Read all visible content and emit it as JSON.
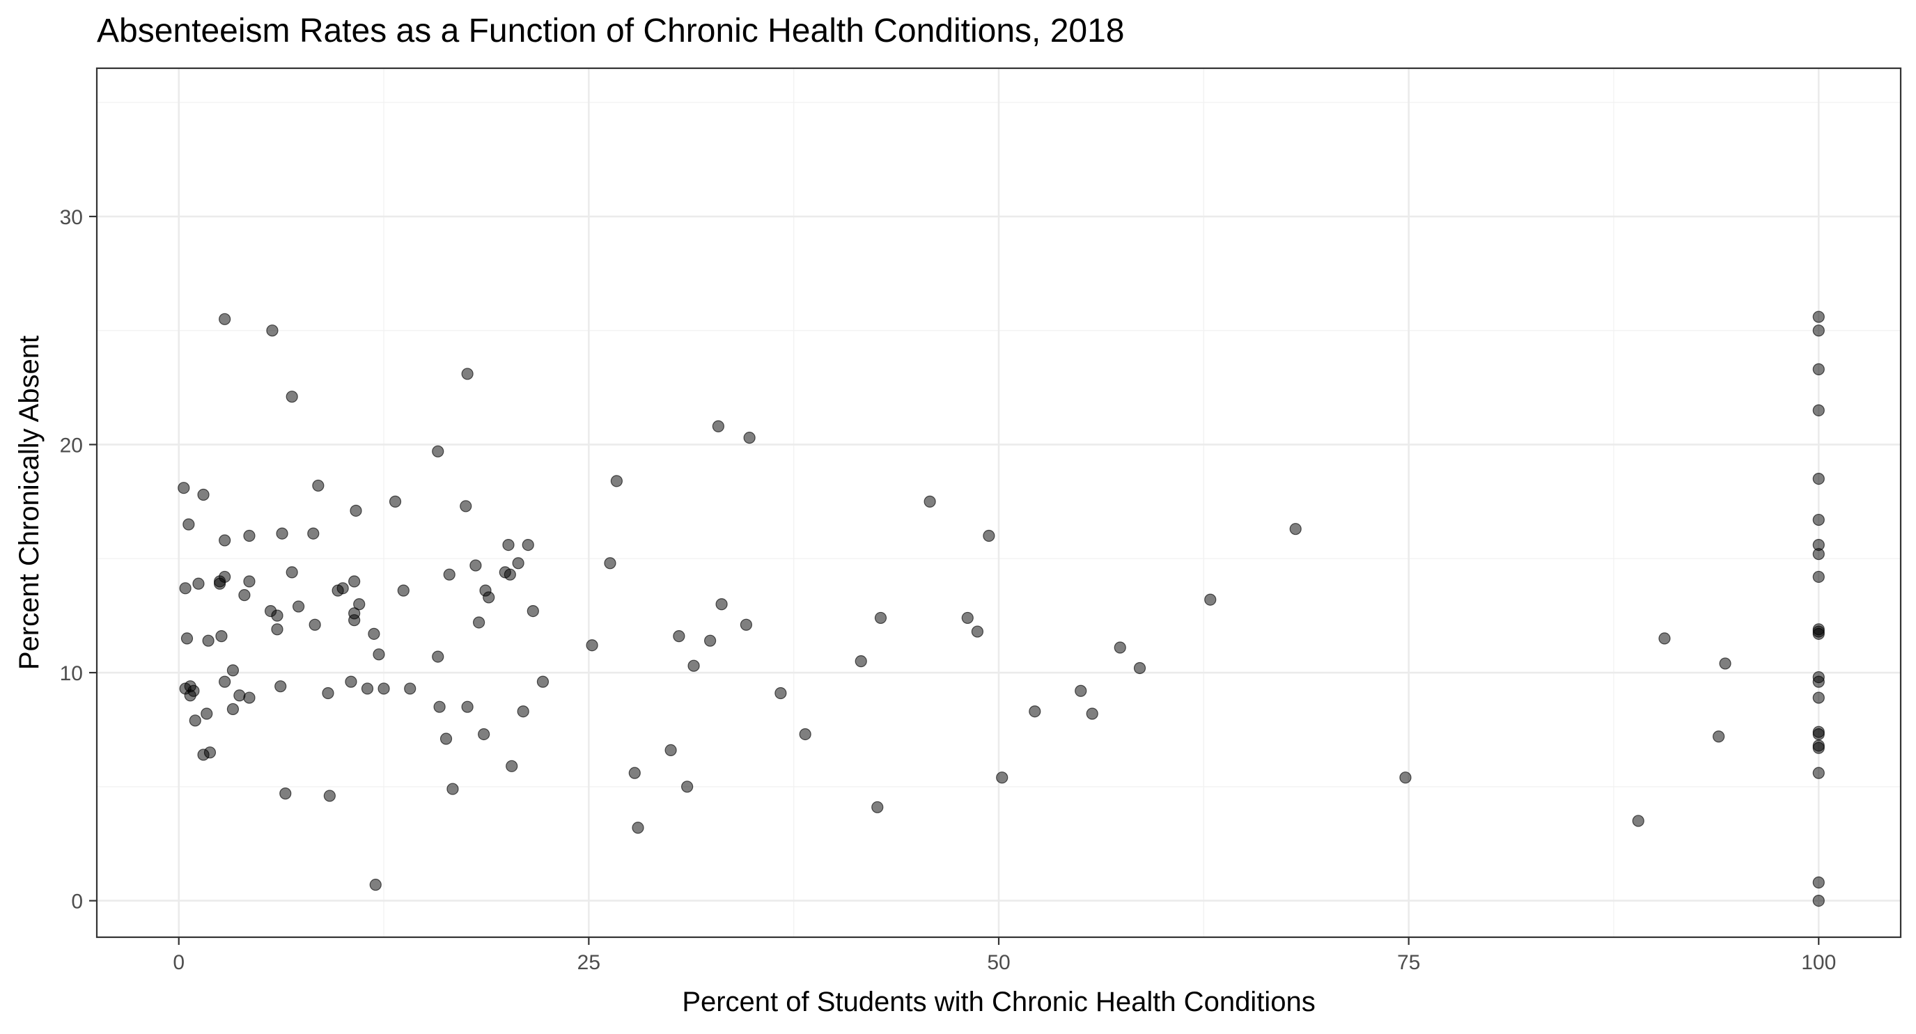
{
  "chart_data": {
    "type": "scatter",
    "title": "Absenteeism Rates as a Function of Chronic Health Conditions, 2018",
    "xlabel": "Percent of Students with Chronic Health Conditions",
    "ylabel": "Percent Chronically Absent",
    "xlim": [
      -5,
      105
    ],
    "ylim": [
      -1.6,
      36.5
    ],
    "x_ticks": [
      0,
      25,
      50,
      75,
      100
    ],
    "y_ticks": [
      0,
      10,
      20,
      30
    ],
    "x_tick_labels": [
      "0",
      "25",
      "50",
      "75",
      "100"
    ],
    "y_tick_labels": [
      "0",
      "10",
      "20",
      "30"
    ],
    "grid": true,
    "theme": "bw",
    "point_color": "#000000",
    "point_alpha": 0.5,
    "points": [
      [
        0.3,
        18.1
      ],
      [
        0.4,
        13.7
      ],
      [
        0.4,
        9.3
      ],
      [
        0.5,
        11.5
      ],
      [
        0.6,
        16.5
      ],
      [
        0.7,
        9.4
      ],
      [
        0.7,
        9.0
      ],
      [
        0.9,
        9.2
      ],
      [
        1.0,
        7.9
      ],
      [
        1.2,
        13.9
      ],
      [
        1.5,
        17.8
      ],
      [
        1.5,
        6.4
      ],
      [
        1.7,
        8.2
      ],
      [
        1.8,
        11.4
      ],
      [
        1.9,
        6.5
      ],
      [
        2.5,
        14.0
      ],
      [
        2.5,
        13.9
      ],
      [
        2.6,
        11.6
      ],
      [
        2.8,
        25.5
      ],
      [
        2.8,
        15.8
      ],
      [
        2.8,
        14.2
      ],
      [
        2.8,
        9.6
      ],
      [
        3.3,
        10.1
      ],
      [
        3.3,
        8.4
      ],
      [
        3.7,
        9.0
      ],
      [
        4.0,
        13.4
      ],
      [
        4.3,
        16.0
      ],
      [
        4.3,
        14.0
      ],
      [
        4.3,
        8.9
      ],
      [
        5.6,
        12.7
      ],
      [
        5.7,
        25.0
      ],
      [
        6.0,
        12.5
      ],
      [
        6.0,
        11.9
      ],
      [
        6.2,
        9.4
      ],
      [
        6.3,
        16.1
      ],
      [
        6.5,
        4.7
      ],
      [
        6.9,
        22.1
      ],
      [
        6.9,
        14.4
      ],
      [
        7.3,
        12.9
      ],
      [
        8.2,
        16.1
      ],
      [
        8.3,
        12.1
      ],
      [
        8.5,
        18.2
      ],
      [
        9.1,
        9.1
      ],
      [
        9.2,
        4.6
      ],
      [
        9.7,
        13.6
      ],
      [
        10.0,
        13.7
      ],
      [
        10.5,
        9.6
      ],
      [
        10.7,
        14.0
      ],
      [
        10.7,
        12.6
      ],
      [
        10.7,
        12.3
      ],
      [
        10.8,
        17.1
      ],
      [
        11.0,
        13.0
      ],
      [
        11.5,
        9.3
      ],
      [
        11.9,
        11.7
      ],
      [
        12.0,
        0.7
      ],
      [
        12.2,
        10.8
      ],
      [
        12.5,
        9.3
      ],
      [
        13.2,
        17.5
      ],
      [
        13.7,
        13.6
      ],
      [
        14.1,
        9.3
      ],
      [
        15.8,
        19.7
      ],
      [
        15.8,
        10.7
      ],
      [
        15.9,
        8.5
      ],
      [
        16.3,
        7.1
      ],
      [
        16.5,
        14.3
      ],
      [
        16.7,
        4.9
      ],
      [
        17.5,
        17.3
      ],
      [
        17.6,
        23.1
      ],
      [
        17.6,
        8.5
      ],
      [
        18.1,
        14.7
      ],
      [
        18.3,
        12.2
      ],
      [
        18.6,
        7.3
      ],
      [
        18.7,
        13.6
      ],
      [
        18.9,
        13.3
      ],
      [
        19.9,
        14.4
      ],
      [
        20.1,
        15.6
      ],
      [
        20.2,
        14.3
      ],
      [
        20.3,
        5.9
      ],
      [
        20.7,
        14.8
      ],
      [
        21.0,
        8.3
      ],
      [
        21.3,
        15.6
      ],
      [
        21.6,
        12.7
      ],
      [
        22.2,
        9.6
      ],
      [
        25.2,
        11.2
      ],
      [
        26.3,
        14.8
      ],
      [
        26.7,
        18.4
      ],
      [
        27.8,
        5.6
      ],
      [
        28.0,
        3.2
      ],
      [
        30.0,
        6.6
      ],
      [
        30.5,
        11.6
      ],
      [
        31.0,
        5.0
      ],
      [
        31.4,
        10.3
      ],
      [
        32.4,
        11.4
      ],
      [
        32.9,
        20.8
      ],
      [
        33.1,
        13.0
      ],
      [
        34.6,
        12.1
      ],
      [
        34.8,
        20.3
      ],
      [
        36.7,
        9.1
      ],
      [
        38.2,
        7.3
      ],
      [
        41.6,
        10.5
      ],
      [
        42.6,
        4.1
      ],
      [
        42.8,
        12.4
      ],
      [
        45.8,
        17.5
      ],
      [
        48.1,
        12.4
      ],
      [
        48.7,
        11.8
      ],
      [
        49.4,
        16.0
      ],
      [
        50.2,
        5.4
      ],
      [
        52.2,
        8.3
      ],
      [
        55.0,
        9.2
      ],
      [
        55.7,
        8.2
      ],
      [
        57.4,
        11.1
      ],
      [
        58.6,
        10.2
      ],
      [
        62.9,
        13.2
      ],
      [
        68.1,
        16.3
      ],
      [
        74.8,
        5.4
      ],
      [
        89.0,
        3.5
      ],
      [
        90.6,
        11.5
      ],
      [
        93.9,
        7.2
      ],
      [
        94.3,
        10.4
      ],
      [
        100,
        25.6
      ],
      [
        100,
        25.0
      ],
      [
        100,
        23.3
      ],
      [
        100,
        21.5
      ],
      [
        100,
        18.5
      ],
      [
        100,
        16.7
      ],
      [
        100,
        15.6
      ],
      [
        100,
        15.2
      ],
      [
        100,
        14.2
      ],
      [
        100,
        11.9
      ],
      [
        100,
        11.8
      ],
      [
        100,
        11.7
      ],
      [
        100,
        9.8
      ],
      [
        100,
        9.6
      ],
      [
        100,
        8.9
      ],
      [
        100,
        7.4
      ],
      [
        100,
        7.3
      ],
      [
        100,
        6.8
      ],
      [
        100,
        6.7
      ],
      [
        100,
        5.6
      ],
      [
        100,
        0.8
      ],
      [
        100,
        0.0
      ]
    ]
  }
}
